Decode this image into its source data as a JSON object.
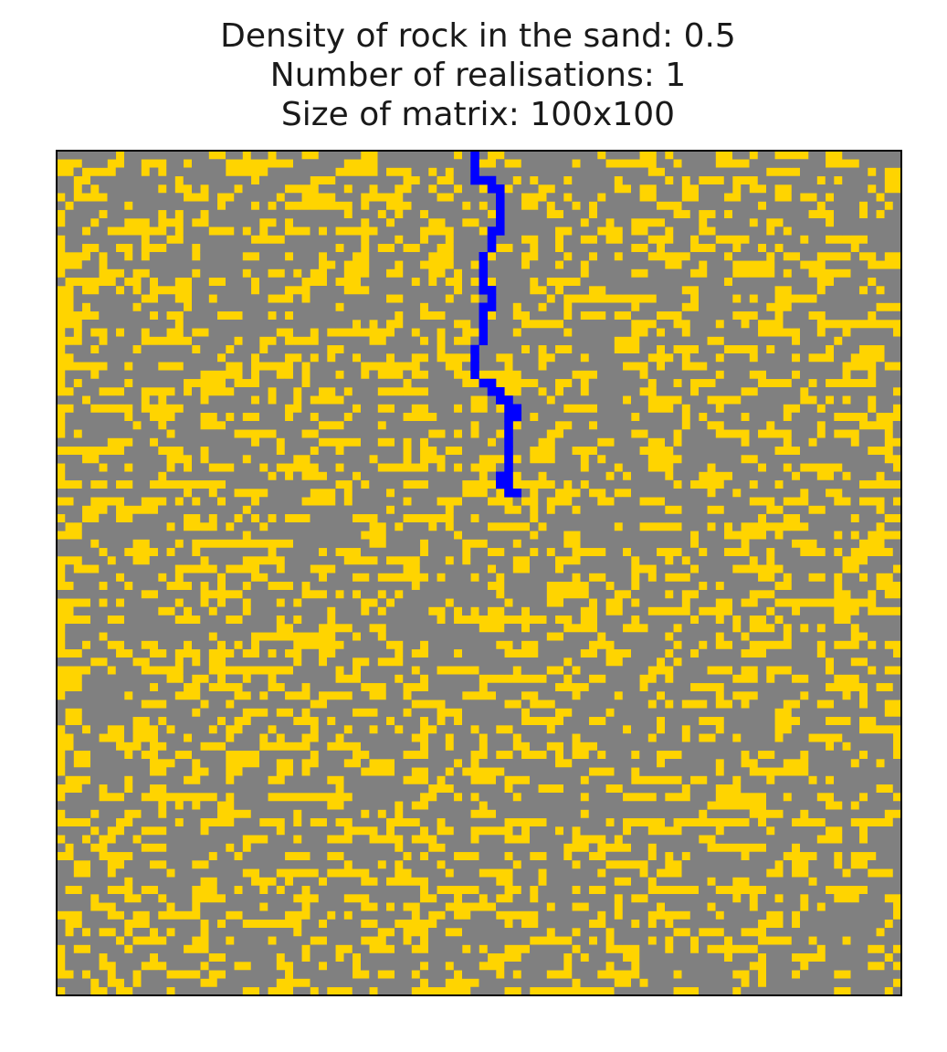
{
  "figure": {
    "title_lines": [
      "Density of rock in the sand: 0.5",
      "Number of realisations: 1",
      "Size of matrix: 100x100"
    ]
  },
  "chart_data": {
    "type": "heatmap",
    "title": "Density of rock in the sand: 0.5\nNumber of realisations: 1\nSize of matrix: 100x100",
    "rows": 100,
    "cols": 100,
    "rock_density": 0.5,
    "realisations": 1,
    "xlabel": "",
    "ylabel": "",
    "axes_ticks": false,
    "grid": false,
    "colors": {
      "sand": "#ffd400",
      "rock": "#808080",
      "path": "#0000ff",
      "frame": "#000000"
    },
    "cells_note_free": true,
    "path": [
      [
        0,
        49
      ],
      [
        1,
        49
      ],
      [
        2,
        49
      ],
      [
        3,
        49
      ],
      [
        3,
        50
      ],
      [
        3,
        51
      ],
      [
        4,
        51
      ],
      [
        4,
        52
      ],
      [
        5,
        52
      ],
      [
        6,
        52
      ],
      [
        7,
        52
      ],
      [
        8,
        52
      ],
      [
        9,
        52
      ],
      [
        9,
        51
      ],
      [
        10,
        51
      ],
      [
        11,
        51
      ],
      [
        12,
        50
      ],
      [
        13,
        50
      ],
      [
        14,
        50
      ],
      [
        15,
        50
      ],
      [
        16,
        50
      ],
      [
        16,
        51
      ],
      [
        17,
        51
      ],
      [
        18,
        51
      ],
      [
        18,
        50
      ],
      [
        19,
        50
      ],
      [
        20,
        50
      ],
      [
        21,
        50
      ],
      [
        22,
        50
      ],
      [
        23,
        49
      ],
      [
        24,
        49
      ],
      [
        25,
        49
      ],
      [
        26,
        49
      ],
      [
        27,
        50
      ],
      [
        27,
        51
      ],
      [
        28,
        51
      ],
      [
        28,
        52
      ],
      [
        29,
        52
      ],
      [
        29,
        53
      ],
      [
        30,
        53
      ],
      [
        30,
        54
      ],
      [
        31,
        54
      ],
      [
        31,
        53
      ],
      [
        32,
        53
      ],
      [
        33,
        53
      ],
      [
        34,
        53
      ],
      [
        35,
        53
      ],
      [
        36,
        53
      ],
      [
        37,
        53
      ],
      [
        38,
        53
      ],
      [
        38,
        52
      ],
      [
        39,
        52
      ],
      [
        39,
        53
      ],
      [
        40,
        53
      ],
      [
        40,
        54
      ]
    ]
  }
}
